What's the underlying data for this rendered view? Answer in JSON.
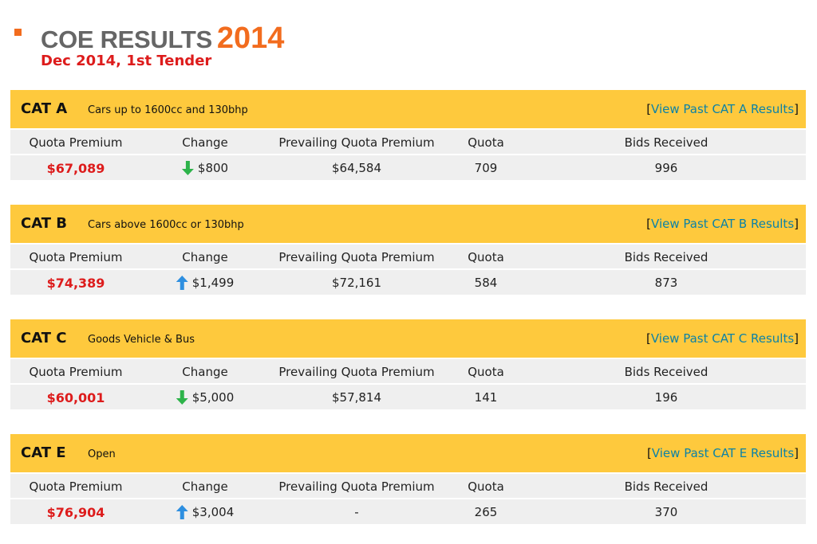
{
  "header": {
    "title": "COE RESULTS",
    "year": "2014",
    "subtitle": "Dec 2014, 1st Tender",
    "accent_color": "#f26c1e"
  },
  "columns": [
    "Quota Premium",
    "Change",
    "Prevailing Quota Premium",
    "Quota",
    "Bids Received"
  ],
  "categories": [
    {
      "name": "CAT A",
      "description": "Cars up to 1600cc and 130bhp",
      "link_prefix": "[",
      "link_text": "View Past CAT A Results",
      "link_suffix": "]",
      "quota_premium": "$67,089",
      "change_direction": "down",
      "change_icon": "arrow-down-icon",
      "change": "$800",
      "prevailing_quota_premium": "$64,584",
      "quota": "709",
      "bids_received": "996"
    },
    {
      "name": "CAT B",
      "description": "Cars above 1600cc or 130bhp",
      "link_prefix": "[",
      "link_text": "View Past CAT B Results",
      "link_suffix": "]",
      "quota_premium": "$74,389",
      "change_direction": "up",
      "change_icon": "arrow-up-icon",
      "change": "$1,499",
      "prevailing_quota_premium": "$72,161",
      "quota": "584",
      "bids_received": "873"
    },
    {
      "name": "CAT C",
      "description": "Goods Vehicle & Bus",
      "link_prefix": "[",
      "link_text": "View Past CAT C Results",
      "link_suffix": "]",
      "quota_premium": "$60,001",
      "change_direction": "down",
      "change_icon": "arrow-down-icon",
      "change": "$5,000",
      "prevailing_quota_premium": "$57,814",
      "quota": "141",
      "bids_received": "196"
    },
    {
      "name": "CAT E",
      "description": "Open",
      "link_prefix": "[",
      "link_text": "View Past CAT E Results",
      "link_suffix": "]",
      "quota_premium": "$76,904",
      "change_direction": "up",
      "change_icon": "arrow-up-icon",
      "change": "$3,004",
      "prevailing_quota_premium": "-",
      "quota": "265",
      "bids_received": "370"
    }
  ],
  "colors": {
    "bar": "#fec93d",
    "row": "#efefef",
    "premium": "#dd1c1c",
    "link": "#0c82a6",
    "arrow_down": "#2db34a",
    "arrow_up": "#2e8fe0"
  }
}
